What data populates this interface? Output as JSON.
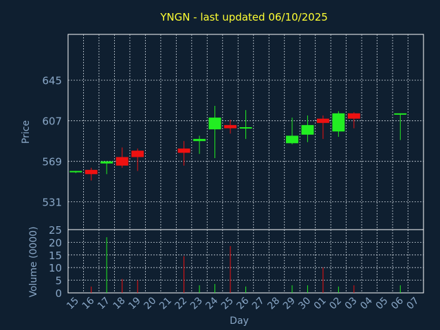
{
  "chart_data": [
    {
      "type": "candlestick",
      "title": "YNGN - last updated 06/10/2025",
      "ylabel": "Price",
      "ylim": [
        505,
        688
      ],
      "yticks": [
        531,
        569,
        607,
        645
      ],
      "grid": true,
      "up_color": "#22ee22",
      "down_color": "#ee1111",
      "candles": [
        {
          "day": "15",
          "open": 559,
          "high": 560,
          "low": 558,
          "close": 560
        },
        {
          "day": "16",
          "open": 561,
          "high": 563,
          "low": 551,
          "close": 557
        },
        {
          "day": "17",
          "open": 567,
          "high": 569,
          "low": 557,
          "close": 569
        },
        {
          "day": "18",
          "open": 573,
          "high": 582,
          "low": 563,
          "close": 565
        },
        {
          "day": "19",
          "open": 579,
          "high": 581,
          "low": 560,
          "close": 573
        },
        {
          "day": "22",
          "open": 581,
          "high": 588,
          "low": 565,
          "close": 577
        },
        {
          "day": "23",
          "open": 588,
          "high": 593,
          "low": 576,
          "close": 590
        },
        {
          "day": "24",
          "open": 599,
          "high": 621,
          "low": 572,
          "close": 610
        },
        {
          "day": "25",
          "open": 603,
          "high": 608,
          "low": 595,
          "close": 600
        },
        {
          "day": "26",
          "open": 600,
          "high": 617,
          "low": 590,
          "close": 601
        },
        {
          "day": "29",
          "open": 586,
          "high": 610,
          "low": 585,
          "close": 593
        },
        {
          "day": "30",
          "open": 594,
          "high": 612,
          "low": 587,
          "close": 603
        },
        {
          "day": "01",
          "open": 609,
          "high": 612,
          "low": 590,
          "close": 605
        },
        {
          "day": "02",
          "open": 597,
          "high": 616,
          "low": 592,
          "close": 614
        },
        {
          "day": "03",
          "open": 614,
          "high": 615,
          "low": 600,
          "close": 609
        },
        {
          "day": "06",
          "open": 613,
          "high": 614,
          "low": 589,
          "close": 614
        }
      ]
    },
    {
      "type": "bar",
      "xlabel": "Day",
      "ylabel": "Volume (0000)",
      "ylim": [
        0,
        25
      ],
      "yticks": [
        0,
        5,
        10,
        15,
        20,
        25
      ],
      "grid": true,
      "categories": [
        "15",
        "16",
        "17",
        "18",
        "19",
        "20",
        "21",
        "22",
        "23",
        "24",
        "25",
        "26",
        "27",
        "28",
        "29",
        "30",
        "01",
        "02",
        "03",
        "04",
        "05",
        "06",
        "07"
      ],
      "values": [
        0,
        2.5,
        22,
        5.5,
        5,
        0,
        0,
        14.5,
        3,
        3.5,
        18.5,
        2.5,
        0,
        0,
        3,
        3,
        10,
        2.5,
        3,
        0,
        0,
        3,
        0
      ],
      "colors": [
        "",
        "#ee1111",
        "#22ee22",
        "#ee1111",
        "#ee1111",
        "",
        "",
        "#ee1111",
        "#22ee22",
        "#22ee22",
        "#ee1111",
        "#22ee22",
        "",
        "",
        "#22ee22",
        "#22ee22",
        "#ee1111",
        "#22ee22",
        "#ee1111",
        "",
        "",
        "#22ee22",
        ""
      ]
    }
  ]
}
